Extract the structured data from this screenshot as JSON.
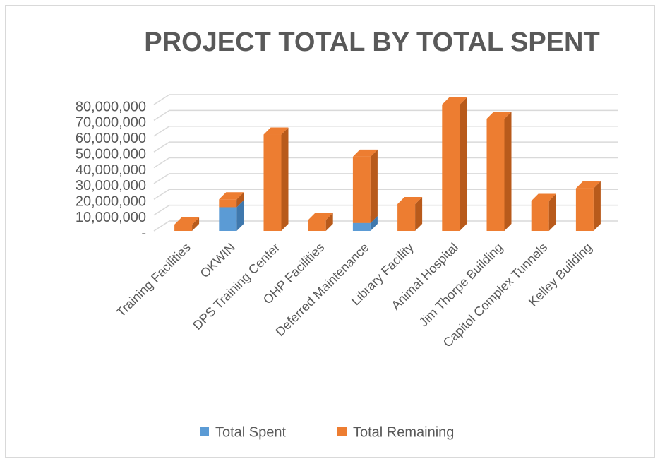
{
  "chart_data": {
    "type": "bar3d_stacked",
    "title": "PROJECT TOTAL BY TOTAL SPENT",
    "categories": [
      "Training Facilities",
      "OKWIN",
      "DPS Training Center",
      "OHP Facilities",
      "Deferred Maintenance",
      "Library Facility",
      "Animal Hospital",
      "Jim Thorpe Building",
      "Capitol Complex Tunnels",
      "Kelley Building"
    ],
    "series": [
      {
        "name": "Total Spent",
        "color": "#5b9bd5",
        "side_color": "#3f78ad",
        "values": [
          0,
          15000000,
          0,
          0,
          5000000,
          0,
          0,
          0,
          0,
          0
        ]
      },
      {
        "name": "Total Remaining",
        "color": "#ed7d31",
        "side_color": "#b85a1b",
        "values": [
          4000000,
          5000000,
          61000000,
          7000000,
          42000000,
          17000000,
          80000000,
          71000000,
          19000000,
          27000000
        ]
      }
    ],
    "ylim": [
      0,
      80000000
    ],
    "yticks": [
      {
        "value": 0,
        "label": "-"
      },
      {
        "value": 10000000,
        "label": "10,000,000"
      },
      {
        "value": 20000000,
        "label": "20,000,000"
      },
      {
        "value": 30000000,
        "label": "30,000,000"
      },
      {
        "value": 40000000,
        "label": "40,000,000"
      },
      {
        "value": 50000000,
        "label": "50,000,000"
      },
      {
        "value": 60000000,
        "label": "60,000,000"
      },
      {
        "value": 70000000,
        "label": "70,000,000"
      },
      {
        "value": 80000000,
        "label": "80,000,000"
      }
    ],
    "grid": true,
    "legend": "bottom"
  }
}
